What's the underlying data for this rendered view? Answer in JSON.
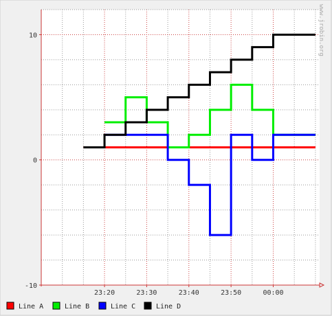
{
  "chart_data": {
    "type": "line",
    "step": true,
    "watermark": "www.jrobin.org",
    "x_ticks": [
      "23:20",
      "23:30",
      "23:40",
      "23:50",
      "00:00"
    ],
    "x_tick_minutes": [
      20,
      30,
      40,
      50,
      60
    ],
    "xlim_minutes": [
      5,
      71
    ],
    "y_ticks": [
      10,
      0,
      -10
    ],
    "ylim": [
      -10,
      12
    ],
    "grid": true,
    "legend_position": "bottom",
    "x": [
      15,
      20,
      25,
      30,
      35,
      40,
      45,
      50,
      55,
      60,
      65
    ],
    "series": [
      {
        "name": "Line A",
        "color": "#ff0000",
        "values": [
          1,
          1,
          1,
          1,
          1,
          1,
          1,
          1,
          1,
          1,
          1
        ]
      },
      {
        "name": "Line B",
        "color": "#00ee00",
        "values": [
          null,
          3,
          5,
          3,
          1,
          2,
          4,
          6,
          4,
          2,
          2
        ]
      },
      {
        "name": "Line C",
        "color": "#0000ff",
        "values": [
          null,
          2,
          2,
          2,
          0,
          -2,
          -6,
          2,
          0,
          2,
          2
        ]
      },
      {
        "name": "Line D",
        "color": "#000000",
        "values": [
          1,
          2,
          3,
          4,
          5,
          6,
          7,
          8,
          9,
          10,
          10
        ]
      }
    ]
  }
}
